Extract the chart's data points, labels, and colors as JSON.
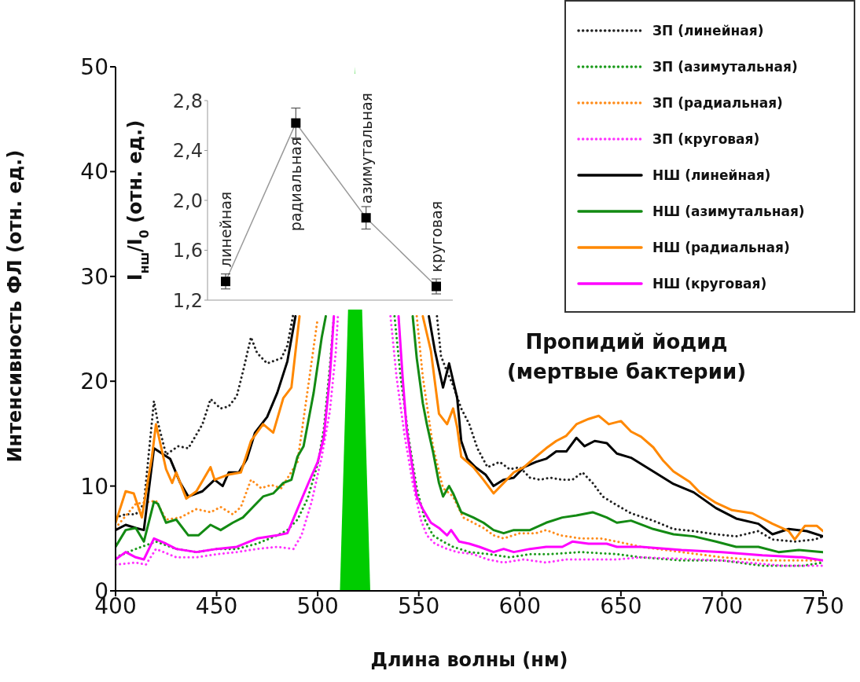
{
  "chart_data": [
    {
      "type": "line",
      "xlabel": "Длина волны (нм)",
      "ylabel": "Интенсивность ФЛ (отн. ед.)",
      "xlim": [
        400,
        750
      ],
      "xticks": [
        400,
        450,
        500,
        550,
        600,
        650,
        700,
        750
      ],
      "ylim": [
        0,
        50
      ],
      "yticks": [
        0,
        10,
        20,
        30,
        40,
        50
      ],
      "grid": false,
      "legend": "top right",
      "annotations": [
        "Пропидий йодид\n(мертвые бактерии)"
      ],
      "series": [
        {
          "name": "ЗП (линейная)",
          "color": "#222222",
          "line_style": "dotted",
          "x": [
            400,
            405,
            410,
            414,
            419,
            421,
            425,
            431,
            436,
            443,
            447,
            452,
            456,
            460,
            463,
            467,
            470,
            475,
            482,
            485,
            488,
            520,
            559,
            561,
            564,
            567,
            571,
            575,
            579,
            584,
            590,
            595,
            600,
            605,
            610,
            615,
            621,
            626,
            631,
            636,
            641,
            646,
            655,
            666,
            676,
            686,
            697,
            707,
            718,
            725,
            736,
            746,
            750
          ],
          "values": [
            7.0,
            7.3,
            7.3,
            8.3,
            18.1,
            16,
            13,
            13.8,
            13.6,
            15.9,
            18.3,
            17.4,
            17.6,
            18.6,
            20.9,
            24.2,
            22.7,
            21.7,
            22.2,
            23.4,
            26.5,
            null,
            26.2,
            22.4,
            20.9,
            19.6,
            17.4,
            15.9,
            13.6,
            11.8,
            12.3,
            11.6,
            11.8,
            10.8,
            10.6,
            10.8,
            10.6,
            10.6,
            11.3,
            10.3,
            9.0,
            8.4,
            7.4,
            6.7,
            5.9,
            5.7,
            5.4,
            5.2,
            5.7,
            4.9,
            4.7,
            4.9,
            5.2
          ]
        },
        {
          "name": "ЗП (азимутальная)",
          "color": "#1a9a1a",
          "line_style": "dotted",
          "x": [
            400,
            410,
            420,
            430,
            440,
            450,
            460,
            470,
            480,
            485,
            490,
            495,
            500,
            503,
            506,
            508,
            520,
            538,
            541,
            545,
            549,
            553,
            557,
            562,
            567,
            575,
            585,
            595,
            605,
            615,
            630,
            648,
            660,
            680,
            700,
            720,
            740,
            750
          ],
          "values": [
            3.2,
            4.0,
            4.7,
            4.0,
            3.7,
            4.0,
            4.0,
            4.5,
            5.3,
            5.8,
            6.8,
            8.8,
            12.1,
            15.4,
            21.4,
            26.2,
            null,
            26.2,
            20.4,
            14.6,
            9.8,
            6.8,
            5.3,
            4.7,
            4.2,
            3.7,
            3.5,
            3.2,
            3.5,
            3.5,
            3.7,
            3.5,
            3.2,
            2.9,
            2.9,
            2.4,
            2.4,
            2.7
          ]
        },
        {
          "name": "ЗП (радиальная)",
          "color": "#ff8c1a",
          "line_style": "dotted",
          "x": [
            400,
            410,
            420,
            425,
            432,
            440,
            447,
            452,
            458,
            462,
            467,
            472,
            477,
            482,
            490,
            495,
            500,
            520,
            549,
            552,
            557,
            562,
            567,
            572,
            577,
            582,
            587,
            592,
            600,
            608,
            613,
            620,
            630,
            640,
            648,
            660,
            680,
            700,
            720,
            740,
            750
          ],
          "values": [
            6.0,
            8.3,
            8.6,
            6.8,
            7.0,
            7.8,
            7.5,
            8.0,
            7.3,
            8.0,
            10.6,
            9.8,
            10.1,
            9.8,
            12.3,
            19.1,
            26.0,
            null,
            26.2,
            20.4,
            13.8,
            9.8,
            9.0,
            7.0,
            6.5,
            6.0,
            5.3,
            5.0,
            5.5,
            5.5,
            5.8,
            5.3,
            5.0,
            5.0,
            4.7,
            4.2,
            3.7,
            3.2,
            2.9,
            2.9,
            2.9
          ]
        },
        {
          "name": "ЗП (круговая)",
          "color": "#ff33ff",
          "line_style": "dotted",
          "x": [
            400,
            410,
            415,
            420,
            430,
            440,
            450,
            460,
            470,
            480,
            488,
            492,
            497,
            502,
            506,
            509,
            510,
            520,
            536,
            539,
            543,
            547,
            551,
            554,
            558,
            564,
            569,
            577,
            584,
            592,
            602,
            613,
            623,
            636,
            648,
            660,
            700,
            730,
            750
          ],
          "values": [
            2.5,
            2.7,
            2.5,
            4.0,
            3.2,
            3.2,
            3.5,
            3.7,
            4.0,
            4.2,
            4.0,
            5.3,
            8.5,
            12.8,
            17.1,
            22.9,
            26.2,
            null,
            26.2,
            20.4,
            14.8,
            10.3,
            6.8,
            5.3,
            4.5,
            4.0,
            3.7,
            3.5,
            3.0,
            2.7,
            3.0,
            2.7,
            3.0,
            3.0,
            3.0,
            3.2,
            2.9,
            2.4,
            2.4
          ]
        },
        {
          "name": "НШ (линейная)",
          "color": "#000000",
          "line_style": "solid",
          "x": [
            400,
            405,
            410,
            414,
            419,
            423,
            427,
            432,
            436,
            443,
            449,
            453,
            456,
            461,
            465,
            469,
            475,
            480,
            485,
            489,
            520,
            555,
            558,
            562,
            565,
            569,
            571,
            574,
            578,
            583,
            587,
            592,
            597,
            602,
            608,
            613,
            618,
            623,
            628,
            632,
            637,
            643,
            648,
            655,
            666,
            676,
            686,
            697,
            707,
            718,
            725,
            733,
            742,
            750
          ],
          "values": [
            5.8,
            6.3,
            6.0,
            5.8,
            13.6,
            13.1,
            12.6,
            10.3,
            9.0,
            9.5,
            10.6,
            10.0,
            11.3,
            11.3,
            12.6,
            15.1,
            16.6,
            18.9,
            21.9,
            26.2,
            null,
            26.2,
            22.9,
            19.4,
            21.7,
            18.4,
            14.3,
            12.6,
            11.8,
            11.1,
            10.0,
            10.6,
            10.8,
            11.8,
            12.3,
            12.6,
            13.3,
            13.3,
            14.6,
            13.8,
            14.3,
            14.1,
            13.1,
            12.7,
            11.4,
            10.2,
            9.4,
            7.9,
            6.9,
            6.4,
            5.4,
            5.9,
            5.7,
            5.2
          ]
        },
        {
          "name": "НШ (азимутальная)",
          "color": "#138a13",
          "line_style": "solid",
          "x": [
            400,
            405,
            410,
            414,
            419,
            421,
            425,
            430,
            436,
            441,
            447,
            452,
            458,
            463,
            468,
            473,
            478,
            483,
            487,
            490,
            493,
            498,
            502,
            504,
            520,
            547,
            549,
            552,
            554,
            557,
            560,
            562,
            565,
            567,
            571,
            577,
            582,
            587,
            592,
            597,
            605,
            613,
            621,
            628,
            636,
            643,
            648,
            655,
            666,
            676,
            686,
            697,
            707,
            718,
            728,
            738,
            750
          ],
          "values": [
            4.2,
            5.8,
            6.0,
            4.7,
            8.5,
            8.3,
            6.5,
            6.8,
            5.3,
            5.3,
            6.3,
            5.8,
            6.5,
            7.0,
            8.0,
            9.0,
            9.3,
            10.3,
            10.6,
            12.8,
            13.8,
            18.9,
            24.2,
            26.2,
            null,
            26.2,
            22.2,
            17.9,
            15.9,
            13.3,
            10.3,
            9.0,
            10.0,
            9.3,
            7.5,
            7.0,
            6.5,
            5.8,
            5.5,
            5.8,
            5.8,
            6.5,
            7.0,
            7.2,
            7.5,
            7.0,
            6.5,
            6.7,
            5.9,
            5.4,
            5.2,
            4.7,
            4.2,
            4.2,
            3.7,
            3.9,
            3.7
          ]
        },
        {
          "name": "НШ (радиальная)",
          "color": "#ff8800",
          "line_style": "solid",
          "x": [
            400,
            405,
            409,
            413,
            418,
            420,
            425,
            428,
            430,
            435,
            440,
            447,
            449,
            456,
            462,
            467,
            473,
            478,
            483,
            487,
            491,
            520,
            552,
            556,
            560,
            564,
            567,
            569,
            571,
            577,
            582,
            587,
            592,
            597,
            602,
            608,
            613,
            618,
            623,
            628,
            634,
            639,
            644,
            650,
            655,
            660,
            666,
            671,
            676,
            684,
            689,
            697,
            705,
            715,
            725,
            733,
            736,
            741,
            747,
            750
          ],
          "values": [
            6.5,
            9.5,
            9.3,
            7.0,
            12.8,
            15.9,
            11.6,
            10.3,
            11.3,
            8.8,
            9.5,
            11.8,
            10.6,
            11.1,
            11.3,
            14.3,
            15.9,
            15.1,
            18.4,
            19.4,
            26.2,
            null,
            26.2,
            22.9,
            16.9,
            15.9,
            17.4,
            15.6,
            12.8,
            11.8,
            10.6,
            9.3,
            10.3,
            11.3,
            11.8,
            12.8,
            13.6,
            14.3,
            14.8,
            15.9,
            16.4,
            16.7,
            15.9,
            16.2,
            15.2,
            14.7,
            13.7,
            12.4,
            11.4,
            10.4,
            9.4,
            8.4,
            7.7,
            7.4,
            6.4,
            5.7,
            4.9,
            6.2,
            6.2,
            5.7
          ]
        },
        {
          "name": "НШ (круговая)",
          "color": "#ff00ff",
          "line_style": "solid",
          "x": [
            400,
            405,
            410,
            414,
            419,
            425,
            430,
            440,
            450,
            460,
            470,
            480,
            485,
            490,
            495,
            500,
            503,
            506,
            508,
            520,
            540,
            542,
            544,
            547,
            549,
            552,
            556,
            560,
            564,
            566,
            570,
            575,
            580,
            587,
            592,
            597,
            605,
            613,
            621,
            626,
            634,
            643,
            648,
            660,
            680,
            700,
            720,
            740,
            750
          ],
          "values": [
            3.0,
            3.7,
            3.2,
            3.0,
            5.0,
            4.5,
            4.0,
            3.7,
            4.0,
            4.2,
            5.0,
            5.3,
            5.5,
            7.8,
            10.1,
            12.3,
            14.6,
            20.4,
            26.2,
            null,
            26.2,
            20.4,
            15.4,
            11.6,
            9.0,
            7.8,
            6.5,
            6.0,
            5.3,
            5.8,
            4.7,
            4.5,
            4.2,
            3.7,
            4.0,
            3.7,
            4.0,
            4.2,
            4.2,
            4.7,
            4.5,
            4.5,
            4.2,
            4.2,
            3.9,
            3.7,
            3.4,
            3.2,
            2.9
          ]
        },
        {
          "type": "area",
          "color": "#00cc00",
          "x": [
            511,
            518.5,
            526
          ],
          "values": [
            0,
            50,
            0
          ]
        }
      ]
    },
    {
      "type": "line",
      "ylabel": "I$_{нш}$/I$_{0}$ (отн. ед.)",
      "categories": [
        "линейная",
        "радиальная",
        "азимутальная",
        "круговая"
      ],
      "values": [
        1.35,
        2.62,
        1.86,
        1.31
      ],
      "errors": [
        0.06,
        0.12,
        0.09,
        0.06
      ],
      "color": "#000000",
      "marker": "square",
      "grid": false,
      "tick_labels": "y",
      "ylim": [
        1.2,
        2.8
      ],
      "yticks": [
        {
          "value": 1.2,
          "label": "1,2"
        },
        {
          "value": 1.6,
          "label": "1,6"
        },
        {
          "value": 2.0,
          "label": "2,0"
        },
        {
          "value": 2.4,
          "label": "2,4"
        },
        {
          "value": 2.8,
          "label": "2,8"
        }
      ]
    }
  ]
}
